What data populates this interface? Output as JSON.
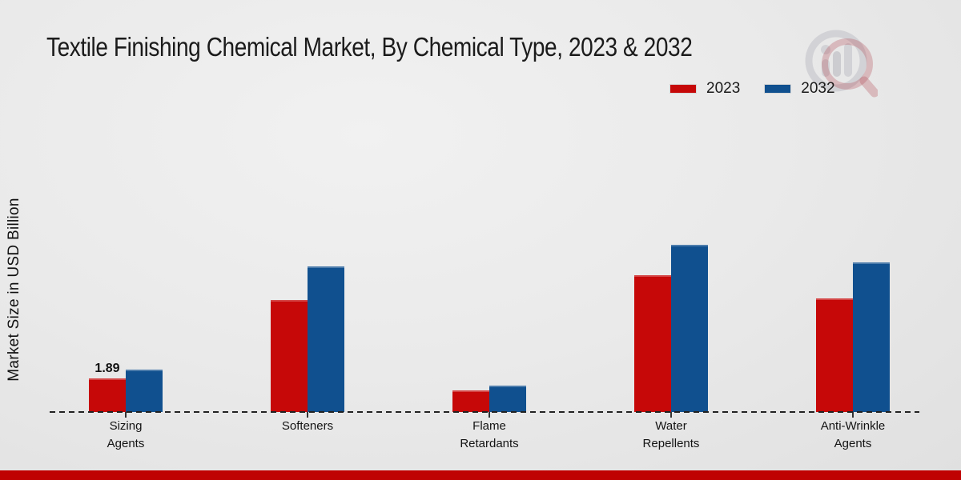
{
  "colors": {
    "series_2023": "#c60808",
    "series_2032": "#10508f",
    "footer_bar": "#bf0202",
    "baseline": "#222222",
    "title_text": "#1b1b1b"
  },
  "legend": {
    "position": "top-right"
  },
  "chart_data": {
    "type": "bar",
    "title": "Textile Finishing Chemical Market, By Chemical Type, 2023 & 2032",
    "xlabel": "",
    "ylabel": "Market Size in USD Billion",
    "categories": [
      "Sizing Agents",
      "Softeners",
      "Flame Retardants",
      "Water Repellents",
      "Anti-Wrinkle Agents"
    ],
    "series": [
      {
        "name": "2023",
        "color": "#c60808",
        "values": [
          1.89,
          6.3,
          1.2,
          7.7,
          6.4
        ]
      },
      {
        "name": "2032",
        "color": "#10508f",
        "values": [
          2.4,
          8.2,
          1.5,
          9.4,
          8.4
        ]
      }
    ],
    "annotations": [
      {
        "category_index": 0,
        "series_index": 0,
        "text": "1.89"
      }
    ],
    "ylim": [
      0,
      10
    ],
    "grid": false,
    "baseline_style": "dashed",
    "legend_position": "top-right"
  }
}
